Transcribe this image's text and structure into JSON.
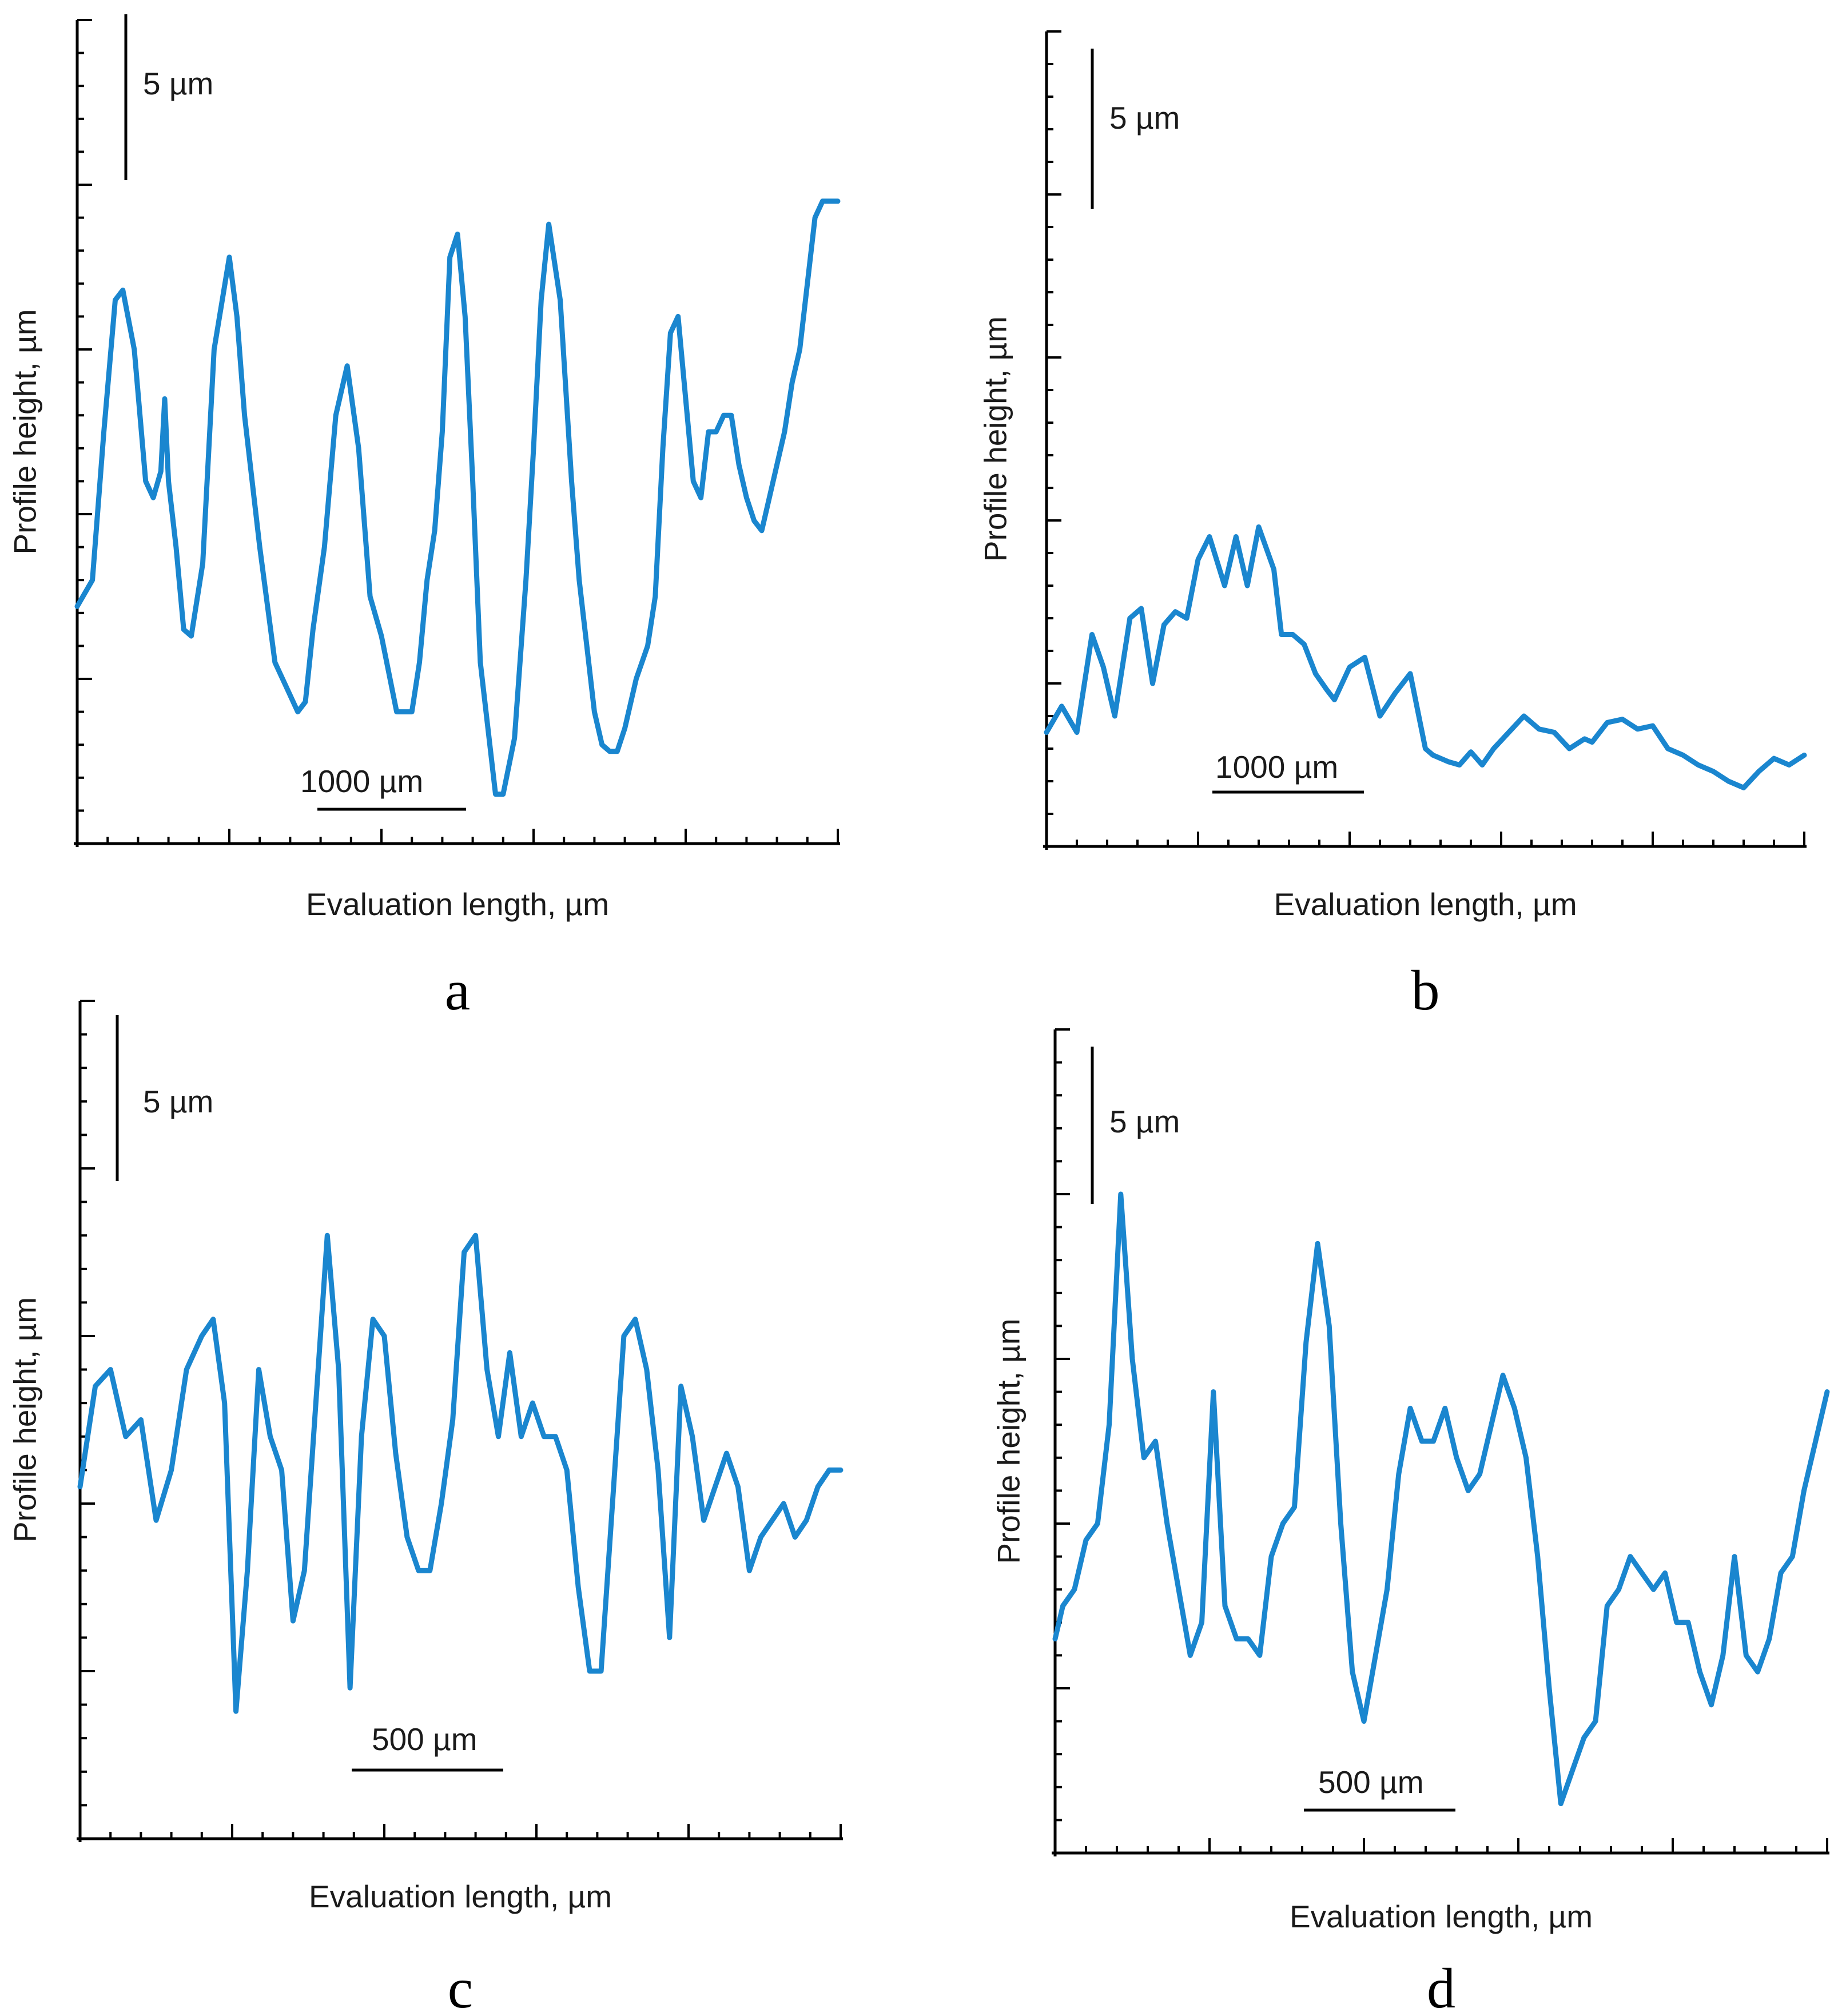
{
  "chart_data": [
    {
      "type": "line",
      "panel_label": "a",
      "xlabel": "Evaluation length, µm",
      "ylabel": "Profile height, µm",
      "scale_bar_vertical": "5 µm",
      "scale_bar_horizontal": "1000 µm",
      "ylim": [
        0,
        25
      ],
      "x": [
        0,
        0.02,
        0.035,
        0.05,
        0.06,
        0.075,
        0.09,
        0.1,
        0.11,
        0.115,
        0.12,
        0.13,
        0.14,
        0.15,
        0.165,
        0.18,
        0.2,
        0.21,
        0.22,
        0.24,
        0.26,
        0.28,
        0.29,
        0.3,
        0.31,
        0.325,
        0.34,
        0.355,
        0.37,
        0.385,
        0.4,
        0.42,
        0.44,
        0.45,
        0.46,
        0.47,
        0.48,
        0.49,
        0.5,
        0.51,
        0.52,
        0.53,
        0.54,
        0.55,
        0.56,
        0.575,
        0.59,
        0.6,
        0.61,
        0.62,
        0.635,
        0.65,
        0.66,
        0.67,
        0.68,
        0.69,
        0.7,
        0.71,
        0.72,
        0.735,
        0.75,
        0.76,
        0.77,
        0.78,
        0.79,
        0.8,
        0.81,
        0.82,
        0.83,
        0.84,
        0.85,
        0.86,
        0.87,
        0.88,
        0.89,
        0.9,
        0.91,
        0.92,
        0.93,
        0.94,
        0.95,
        0.96,
        0.97,
        0.98,
        0.99,
        1.0
      ],
      "y": [
        7.2,
        8.0,
        12.5,
        16.5,
        16.8,
        15.0,
        11.0,
        10.5,
        11.3,
        13.5,
        11.0,
        9.0,
        6.5,
        6.3,
        8.5,
        15.0,
        17.8,
        16.0,
        13.0,
        9.0,
        5.5,
        4.5,
        4.0,
        4.3,
        6.5,
        9.0,
        13.0,
        14.5,
        12.0,
        7.5,
        6.3,
        4.0,
        4.0,
        5.5,
        8.0,
        9.5,
        12.5,
        17.8,
        18.5,
        16.0,
        11.0,
        5.5,
        3.5,
        1.5,
        1.5,
        3.2,
        8.0,
        12.0,
        16.5,
        18.8,
        16.5,
        11.0,
        8.0,
        6.0,
        4.0,
        3.0,
        2.8,
        2.8,
        3.5,
        5.0,
        6.0,
        7.5,
        12.0,
        15.5,
        16.0,
        13.5,
        11.0,
        10.5,
        12.5,
        12.5,
        13.0,
        13.0,
        11.5,
        10.5,
        9.8,
        9.5,
        10.5,
        11.5,
        12.5,
        14.0,
        15.0,
        17.0,
        19.0,
        19.5,
        19.5,
        19.5
      ]
    },
    {
      "type": "line",
      "panel_label": "b",
      "xlabel": "Evaluation length, µm",
      "ylabel": "Profile height, µm",
      "scale_bar_vertical": "5 µm",
      "scale_bar_horizontal": "1000 µm",
      "ylim": [
        0,
        25
      ],
      "x": [
        0,
        0.02,
        0.04,
        0.06,
        0.075,
        0.09,
        0.11,
        0.125,
        0.14,
        0.155,
        0.17,
        0.185,
        0.2,
        0.215,
        0.235,
        0.25,
        0.265,
        0.28,
        0.3,
        0.31,
        0.325,
        0.34,
        0.355,
        0.37,
        0.38,
        0.4,
        0.42,
        0.44,
        0.46,
        0.48,
        0.5,
        0.51,
        0.53,
        0.545,
        0.56,
        0.575,
        0.59,
        0.61,
        0.63,
        0.65,
        0.67,
        0.69,
        0.71,
        0.72,
        0.74,
        0.76,
        0.78,
        0.8,
        0.82,
        0.84,
        0.86,
        0.88,
        0.9,
        0.92,
        0.94,
        0.96,
        0.98,
        1.0
      ],
      "y": [
        3.5,
        4.3,
        3.5,
        6.5,
        5.5,
        4.0,
        7.0,
        7.3,
        5.0,
        6.8,
        7.2,
        7.0,
        8.8,
        9.5,
        8.0,
        9.5,
        8.0,
        9.8,
        8.5,
        6.5,
        6.5,
        6.2,
        5.3,
        4.8,
        4.5,
        5.5,
        5.8,
        4.0,
        4.7,
        5.3,
        3.0,
        2.8,
        2.6,
        2.5,
        2.9,
        2.5,
        3.0,
        3.5,
        4.0,
        3.6,
        3.5,
        3.0,
        3.3,
        3.2,
        3.8,
        3.9,
        3.6,
        3.7,
        3.0,
        2.8,
        2.5,
        2.3,
        2.0,
        1.8,
        2.3,
        2.7,
        2.5,
        2.8
      ]
    },
    {
      "type": "line",
      "panel_label": "c",
      "xlabel": "Evaluation length, µm",
      "ylabel": "Profile height, µm",
      "scale_bar_vertical": "5 µm",
      "scale_bar_horizontal": "500 µm",
      "ylim": [
        0,
        25
      ],
      "x": [
        0,
        0.02,
        0.04,
        0.06,
        0.08,
        0.1,
        0.12,
        0.14,
        0.16,
        0.175,
        0.19,
        0.205,
        0.22,
        0.235,
        0.25,
        0.265,
        0.28,
        0.295,
        0.31,
        0.325,
        0.34,
        0.355,
        0.37,
        0.385,
        0.4,
        0.415,
        0.43,
        0.445,
        0.46,
        0.475,
        0.49,
        0.505,
        0.52,
        0.535,
        0.55,
        0.565,
        0.58,
        0.595,
        0.61,
        0.625,
        0.64,
        0.655,
        0.67,
        0.685,
        0.7,
        0.715,
        0.73,
        0.745,
        0.76,
        0.775,
        0.79,
        0.805,
        0.82,
        0.835,
        0.85,
        0.865,
        0.88,
        0.895,
        0.91,
        0.925,
        0.94,
        0.955,
        0.97,
        0.985,
        1.0
      ],
      "y": [
        10.5,
        13.5,
        14.0,
        12.0,
        12.5,
        9.5,
        11.0,
        14.0,
        15.0,
        15.5,
        13.0,
        3.8,
        8.0,
        14.0,
        12.0,
        11.0,
        6.5,
        8.0,
        13.0,
        18.0,
        14.0,
        4.5,
        12.0,
        15.5,
        15.0,
        11.5,
        9.0,
        8.0,
        8.0,
        10.0,
        12.5,
        17.5,
        18.0,
        14.0,
        12.0,
        14.5,
        12.0,
        13.0,
        12.0,
        12.0,
        11.0,
        7.5,
        5.0,
        5.0,
        10.0,
        15.0,
        15.5,
        14.0,
        11.0,
        6.0,
        13.5,
        12.0,
        9.5,
        10.5,
        11.5,
        10.5,
        8.0,
        9.0,
        9.5,
        10.0,
        9.0,
        9.5,
        10.5,
        11.0,
        11.0
      ]
    },
    {
      "type": "line",
      "panel_label": "d",
      "xlabel": "Evaluation length, µm",
      "ylabel": "Profile height, µm",
      "scale_bar_vertical": "5 µm",
      "scale_bar_horizontal": "500 µm",
      "ylim": [
        0,
        25
      ],
      "x": [
        0,
        0.01,
        0.025,
        0.04,
        0.055,
        0.07,
        0.085,
        0.1,
        0.115,
        0.13,
        0.145,
        0.16,
        0.175,
        0.19,
        0.205,
        0.22,
        0.235,
        0.25,
        0.265,
        0.28,
        0.295,
        0.31,
        0.325,
        0.34,
        0.355,
        0.37,
        0.385,
        0.4,
        0.415,
        0.43,
        0.445,
        0.46,
        0.475,
        0.49,
        0.505,
        0.52,
        0.535,
        0.55,
        0.565,
        0.58,
        0.595,
        0.61,
        0.625,
        0.64,
        0.655,
        0.67,
        0.685,
        0.7,
        0.715,
        0.73,
        0.745,
        0.76,
        0.775,
        0.79,
        0.805,
        0.82,
        0.835,
        0.85,
        0.865,
        0.88,
        0.895,
        0.91,
        0.925,
        0.94,
        0.955,
        0.97,
        0.985,
        1.0
      ],
      "y": [
        6.5,
        7.5,
        8.0,
        9.5,
        10.0,
        13.0,
        20.0,
        15.0,
        12.0,
        12.5,
        10.0,
        8.0,
        6.0,
        7.0,
        14.0,
        7.5,
        6.5,
        6.5,
        6.0,
        9.0,
        10.0,
        10.5,
        15.5,
        18.5,
        16.0,
        10.0,
        5.5,
        4.0,
        6.0,
        8.0,
        11.5,
        13.5,
        12.5,
        12.5,
        13.5,
        12.0,
        11.0,
        11.5,
        13.0,
        14.5,
        13.5,
        12.0,
        9.0,
        5.0,
        1.5,
        2.5,
        3.5,
        4.0,
        7.5,
        8.0,
        9.0,
        8.5,
        8.0,
        8.5,
        7.0,
        7.0,
        5.5,
        4.5,
        6.0,
        9.0,
        6.0,
        5.5,
        6.5,
        8.5,
        9.0,
        11.0,
        12.5,
        14.0
      ]
    }
  ]
}
